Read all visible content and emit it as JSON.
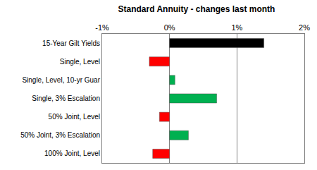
{
  "chart_data": {
    "type": "bar",
    "orientation": "horizontal",
    "title": "Standard Annuity - changes last month",
    "categories": [
      "15-Year Gilt Yields",
      "Single, Level",
      "Single, Level, 10-yr Guar",
      "Single, 3% Escalation",
      "50% Joint, Level",
      "50% Joint, 3% Escalation",
      "100% Joint, Level"
    ],
    "values": [
      1.4,
      -0.3,
      0.08,
      0.7,
      -0.15,
      0.28,
      -0.25
    ],
    "colors": [
      "#000000",
      "#ff0000",
      "#00b050",
      "#00b050",
      "#ff0000",
      "#00b050",
      "#ff0000"
    ],
    "xlim": [
      -1,
      2
    ],
    "xticks": [
      {
        "value": -1,
        "label": "-1%"
      },
      {
        "value": 0,
        "label": "0%"
      },
      {
        "value": 1,
        "label": "1%"
      },
      {
        "value": 2,
        "label": "2%"
      }
    ],
    "grid": true
  }
}
